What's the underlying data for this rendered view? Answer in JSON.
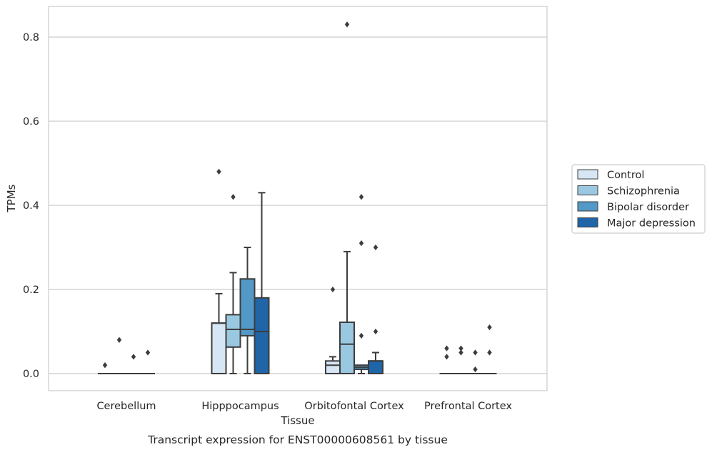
{
  "chart_data": {
    "type": "box",
    "title": "Transcript expression for ENST00000608561 by tissue",
    "xlabel": "Tissue",
    "ylabel": "TPMs",
    "ylim": [
      -0.04,
      0.875
    ],
    "yticks": [
      0.0,
      0.2,
      0.4,
      0.6,
      0.8
    ],
    "ytick_labels": [
      "0.0",
      "0.2",
      "0.4",
      "0.6",
      "0.8"
    ],
    "grid": "horizontal",
    "legend_position": "right",
    "categories": [
      "Cerebellum",
      "Hipppocampus",
      "Orbitofontal Cortex",
      "Prefrontal Cortex"
    ],
    "series": [
      {
        "name": "Control",
        "color": "#d6e6f4",
        "boxes": [
          {
            "q1": 0,
            "median": 0,
            "q3": 0,
            "whislo": 0,
            "whishi": 0,
            "fliers": [
              0.02
            ]
          },
          {
            "q1": 0,
            "median": 0.12,
            "q3": 0.12,
            "whislo": 0,
            "whishi": 0.19,
            "fliers": [
              0.48
            ]
          },
          {
            "q1": 0,
            "median": 0.02,
            "q3": 0.03,
            "whislo": 0,
            "whishi": 0.04,
            "fliers": [
              0.2
            ]
          },
          {
            "q1": 0,
            "median": 0,
            "q3": 0,
            "whislo": 0,
            "whishi": 0,
            "fliers": [
              0.04,
              0.06
            ]
          }
        ]
      },
      {
        "name": "Schizophrenia",
        "color": "#9ac8e0",
        "boxes": [
          {
            "q1": 0,
            "median": 0,
            "q3": 0,
            "whislo": 0,
            "whishi": 0,
            "fliers": [
              0.08
            ]
          },
          {
            "q1": 0.063,
            "median": 0.105,
            "q3": 0.14,
            "whislo": 0,
            "whishi": 0.24,
            "fliers": [
              0.42
            ]
          },
          {
            "q1": 0,
            "median": 0.07,
            "q3": 0.122,
            "whislo": 0,
            "whishi": 0.29,
            "fliers": [
              0.83
            ]
          },
          {
            "q1": 0,
            "median": 0,
            "q3": 0,
            "whislo": 0,
            "whishi": 0,
            "fliers": [
              0.05,
              0.06
            ]
          }
        ]
      },
      {
        "name": "Bipolar disorder",
        "color": "#5299c7",
        "boxes": [
          {
            "q1": 0,
            "median": 0,
            "q3": 0,
            "whislo": 0,
            "whishi": 0,
            "fliers": [
              0.04
            ]
          },
          {
            "q1": 0.09,
            "median": 0.105,
            "q3": 0.225,
            "whislo": 0,
            "whishi": 0.3,
            "fliers": []
          },
          {
            "q1": 0.01,
            "median": 0.015,
            "q3": 0.02,
            "whislo": 0,
            "whishi": 0.02,
            "fliers": [
              0.09,
              0.31,
              0.42
            ]
          },
          {
            "q1": 0,
            "median": 0,
            "q3": 0,
            "whislo": 0,
            "whishi": 0,
            "fliers": [
              0.01,
              0.05
            ]
          }
        ]
      },
      {
        "name": "Major depression",
        "color": "#1f65a8",
        "boxes": [
          {
            "q1": 0,
            "median": 0,
            "q3": 0,
            "whislo": 0,
            "whishi": 0,
            "fliers": [
              0.05
            ]
          },
          {
            "q1": 0,
            "median": 0.1,
            "q3": 0.18,
            "whislo": 0,
            "whishi": 0.43,
            "fliers": []
          },
          {
            "q1": 0,
            "median": 0.03,
            "q3": 0.03,
            "whislo": 0,
            "whishi": 0.05,
            "fliers": [
              0.1,
              0.3
            ]
          },
          {
            "q1": 0,
            "median": 0,
            "q3": 0,
            "whislo": 0,
            "whishi": 0,
            "fliers": [
              0.05,
              0.11
            ]
          }
        ]
      }
    ]
  }
}
